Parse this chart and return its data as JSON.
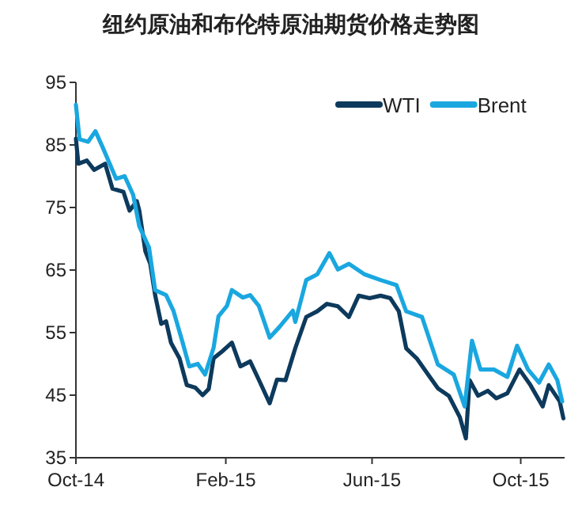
{
  "chart_data": {
    "type": "line",
    "title": "纽约原油和布伦特原油期货价格走势图",
    "xlim": [
      "2014-10-01",
      "2015-11-06"
    ],
    "xticks": [
      {
        "value": "2014-10-01",
        "label": "Oct-14"
      },
      {
        "value": "2015-02-01",
        "label": "Feb-15"
      },
      {
        "value": "2015-06-01",
        "label": "Jun-15"
      },
      {
        "value": "2015-10-01",
        "label": "Oct-15"
      }
    ],
    "ylim": [
      35,
      95
    ],
    "yticks": [
      35,
      45,
      55,
      65,
      75,
      85,
      95
    ],
    "grid": false,
    "legend": "top right",
    "marker": "none",
    "line_style": "solid",
    "series": [
      {
        "name": "WTI",
        "color": "#0d3a5c",
        "x": [
          "2014-10-01",
          "2014-10-03",
          "2014-10-10",
          "2014-10-16",
          "2014-10-25",
          "2014-10-31",
          "2014-11-09",
          "2014-11-14",
          "2014-11-20",
          "2014-11-22",
          "2014-11-27",
          "2014-12-01",
          "2014-12-05",
          "2014-12-10",
          "2014-12-14",
          "2014-12-18",
          "2014-12-25",
          "2014-12-31",
          "2015-01-07",
          "2015-01-13",
          "2015-01-18",
          "2015-01-22",
          "2015-01-29",
          "2015-02-06",
          "2015-02-13",
          "2015-02-21",
          "2015-02-28",
          "2015-03-09",
          "2015-03-15",
          "2015-03-22",
          "2015-03-30",
          "2015-04-08",
          "2015-04-17",
          "2015-04-25",
          "2015-05-04",
          "2015-05-13",
          "2015-05-21",
          "2015-05-30",
          "2015-06-08",
          "2015-06-16",
          "2015-06-23",
          "2015-06-29",
          "2015-07-08",
          "2015-07-17",
          "2015-07-25",
          "2015-08-03",
          "2015-08-12",
          "2015-08-17",
          "2015-08-20",
          "2015-08-27",
          "2015-09-04",
          "2015-09-11",
          "2015-09-20",
          "2015-09-30",
          "2015-10-09",
          "2015-10-19",
          "2015-10-24",
          "2015-11-02",
          "2015-11-05"
        ],
        "values": [
          86,
          82,
          82.5,
          81,
          82,
          78,
          77.5,
          74.5,
          76,
          74.5,
          68,
          66,
          61,
          56.4,
          56.8,
          53.4,
          50.9,
          46.6,
          46.2,
          45,
          46,
          50.9,
          52,
          53.4,
          49.6,
          50.4,
          47.5,
          43.7,
          47.5,
          47.4,
          52.5,
          57.5,
          58.4,
          59.6,
          59.2,
          57.5,
          60.9,
          60.5,
          60.9,
          60.5,
          58.4,
          52.5,
          50.8,
          48.3,
          46.1,
          44.9,
          41.5,
          38.1,
          47.4,
          44.9,
          45.7,
          44.5,
          45.3,
          49.1,
          46.6,
          43.2,
          46.6,
          44.0,
          41.3
        ]
      },
      {
        "name": "Brent",
        "color": "#1aa7e0",
        "x": [
          "2014-10-01",
          "2014-10-04",
          "2014-10-11",
          "2014-10-17",
          "2014-10-23",
          "2014-11-03",
          "2014-11-10",
          "2014-11-17",
          "2014-11-22",
          "2014-11-30",
          "2014-12-05",
          "2014-12-14",
          "2014-12-20",
          "2014-12-27",
          "2015-01-02",
          "2015-01-09",
          "2015-01-15",
          "2015-01-22",
          "2015-01-26",
          "2015-02-02",
          "2015-02-06",
          "2015-02-15",
          "2015-02-21",
          "2015-02-28",
          "2015-03-09",
          "2015-03-17",
          "2015-03-28",
          "2015-03-30",
          "2015-04-08",
          "2015-04-17",
          "2015-04-27",
          "2015-05-04",
          "2015-05-13",
          "2015-05-26",
          "2015-06-08",
          "2015-06-21",
          "2015-06-29",
          "2015-07-12",
          "2015-07-25",
          "2015-08-07",
          "2015-08-16",
          "2015-08-22",
          "2015-08-29",
          "2015-09-09",
          "2015-09-20",
          "2015-09-28",
          "2015-10-07",
          "2015-10-16",
          "2015-10-24",
          "2015-10-31",
          "2015-11-04"
        ],
        "values": [
          91.4,
          85.9,
          85.5,
          87.2,
          84.6,
          79.6,
          80,
          77,
          72,
          68.6,
          61.8,
          61,
          58.5,
          53.8,
          49.6,
          50,
          48.3,
          52.6,
          57.6,
          59.3,
          61.8,
          60.6,
          61,
          59.3,
          54.2,
          55.9,
          58.5,
          56.7,
          63.4,
          64.3,
          67.7,
          65.1,
          66.0,
          64.3,
          63.4,
          62.6,
          58.4,
          57.5,
          49.9,
          48.3,
          43.2,
          53.7,
          49.1,
          49.1,
          47.9,
          52.9,
          49.1,
          47.0,
          49.9,
          47.4,
          44.0
        ]
      }
    ]
  }
}
